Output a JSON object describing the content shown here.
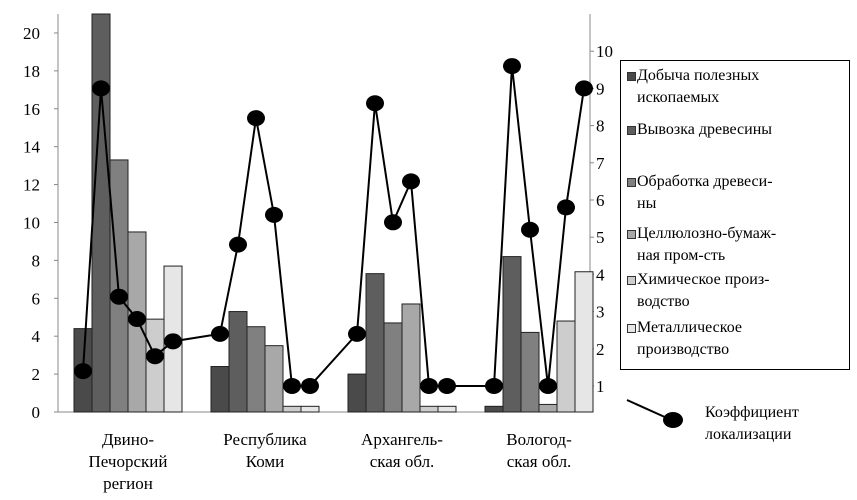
{
  "chart_data": {
    "type": "bar",
    "categories": [
      "Двино-Печорский регион",
      "Республика Коми",
      "Архангель-ская обл.",
      "Вологод-ская обл."
    ],
    "category_label_lines": [
      [
        "Двино-",
        "Печорский",
        "регион"
      ],
      [
        "Республика",
        "Коми"
      ],
      [
        "Архангель-",
        "ская обл."
      ],
      [
        "Вологод-",
        "ская обл."
      ]
    ],
    "ylim_left": [
      0,
      21
    ],
    "yticks_left": [
      "0",
      "2",
      "4",
      "6",
      "8",
      "10",
      "12",
      "14",
      "16",
      "18",
      "20"
    ],
    "ylim_right": [
      0.3,
      11
    ],
    "yticks_right": [
      "1",
      "2",
      "3",
      "4",
      "5",
      "6",
      "7",
      "8",
      "9",
      "10"
    ],
    "series": [
      {
        "name": "Добыча полезных ископаемых",
        "color": "#4a4a4a",
        "values": [
          4.4,
          2.4,
          2.0,
          0.3
        ]
      },
      {
        "name": "Вывозка древесины",
        "color": "#5e5e5e",
        "values": [
          21.0,
          5.3,
          7.3,
          8.2
        ]
      },
      {
        "name": "Обработка древеси-ны",
        "color": "#808080",
        "values": [
          13.3,
          4.5,
          4.7,
          4.2
        ]
      },
      {
        "name": "Целлюлозно-бумаж-ная пром-сть",
        "color": "#a8a8a8",
        "values": [
          9.5,
          3.5,
          5.7,
          0.4
        ]
      },
      {
        "name": "Химическое произ-водство",
        "color": "#cdcdcd",
        "values": [
          4.9,
          0.3,
          0.3,
          4.8
        ]
      },
      {
        "name": "Металлическое производство",
        "color": "#e6e6e6",
        "values": [
          7.7,
          0.3,
          0.3,
          7.4
        ]
      }
    ],
    "line": {
      "name": "Коэффициент локализации",
      "points": [
        {
          "category": 0,
          "offset": 0,
          "value": 1.4
        },
        {
          "category": 0,
          "offset": 1,
          "value": 9.0
        },
        {
          "category": 0,
          "offset": 2,
          "value": 3.4
        },
        {
          "category": 0,
          "offset": 3,
          "value": 2.8
        },
        {
          "category": 0,
          "offset": 4,
          "value": 1.8
        },
        {
          "category": 0,
          "offset": 5,
          "value": 2.2
        },
        {
          "category": 1,
          "offset": 0,
          "value": 2.4
        },
        {
          "category": 1,
          "offset": 1,
          "value": 4.8
        },
        {
          "category": 1,
          "offset": 2,
          "value": 8.2
        },
        {
          "category": 1,
          "offset": 3,
          "value": 5.6
        },
        {
          "category": 1,
          "offset": 4,
          "value": 1.0
        },
        {
          "category": 1,
          "offset": 5,
          "value": 1.0
        },
        {
          "category": 2,
          "offset": 0,
          "value": 2.4
        },
        {
          "category": 2,
          "offset": 1,
          "value": 8.6
        },
        {
          "category": 2,
          "offset": 2,
          "value": 5.4
        },
        {
          "category": 2,
          "offset": 3,
          "value": 6.5
        },
        {
          "category": 2,
          "offset": 4,
          "value": 1.0
        },
        {
          "category": 2,
          "offset": 5,
          "value": 1.0
        },
        {
          "category": 3,
          "offset": 0,
          "value": 1.0
        },
        {
          "category": 3,
          "offset": 1,
          "value": 9.6
        },
        {
          "category": 3,
          "offset": 2,
          "value": 5.2
        },
        {
          "category": 3,
          "offset": 3,
          "value": 1.0
        },
        {
          "category": 3,
          "offset": 4,
          "value": 5.8
        },
        {
          "category": 3,
          "offset": 5,
          "value": 9.0
        }
      ]
    },
    "legend": {
      "entries": [
        [
          "Добыча полезных",
          "ископаемых"
        ],
        [
          "Вывозка древесины"
        ],
        [
          "Обработка древеси-",
          "ны"
        ],
        [
          "Целлюлозно-бумаж-",
          "ная пром-сть"
        ],
        [
          "Химическое произ-",
          "водство"
        ],
        [
          "Металлическое",
          "производство"
        ]
      ],
      "line_entry": [
        "Коэффициент",
        "локализации"
      ]
    },
    "grid": false
  }
}
